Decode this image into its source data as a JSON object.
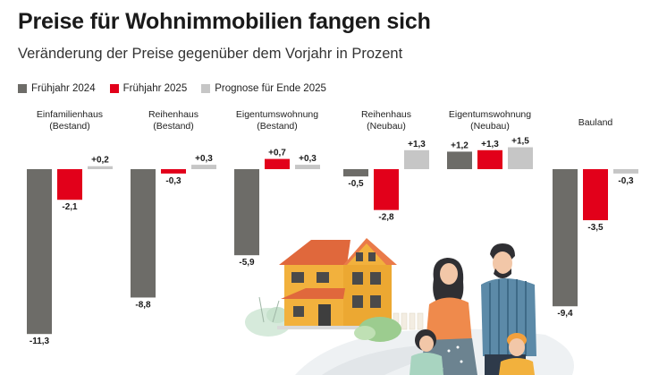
{
  "header": {
    "title": "Preise für Wohnimmobilien fangen sich",
    "subtitle": "Veränderung der Preise gegenüber dem Vorjahr in Prozent"
  },
  "chart_data": {
    "type": "bar",
    "title": "Preise für Wohnimmobilien fangen sich",
    "subtitle": "Veränderung der Preise gegenüber dem Vorjahr in Prozent",
    "categories": [
      [
        "Einfamilienhaus",
        "(Bestand)"
      ],
      [
        "Reihenhaus",
        "(Bestand)"
      ],
      [
        "Eigentumswohnung",
        "(Bestand)"
      ],
      [
        "Reihenhaus",
        "(Neubau)"
      ],
      [
        "Eigentumswohnung",
        "(Neubau)"
      ],
      [
        "Bauland"
      ]
    ],
    "series": [
      {
        "name": "Frühjahr 2024",
        "color": "#6d6c68",
        "values": [
          -11.3,
          -8.8,
          -5.9,
          -0.5,
          1.2,
          -9.4
        ],
        "labels": [
          "-11,3",
          "-8,8",
          "-5,9",
          "-0,5",
          "+1,2",
          "-9,4"
        ]
      },
      {
        "name": "Frühjahr 2025",
        "color": "#e2001a",
        "values": [
          -2.1,
          -0.3,
          0.7,
          -2.8,
          1.3,
          -3.5
        ],
        "labels": [
          "-2,1",
          "-0,3",
          "+0,7",
          "-2,8",
          "+1,3",
          "-3,5"
        ]
      },
      {
        "name": "Prognose für Ende 2025",
        "color": "#c6c6c6",
        "values": [
          0.2,
          0.3,
          0.3,
          1.3,
          1.5,
          -0.3
        ],
        "labels": [
          "+0,2",
          "+0,3",
          "+0,3",
          "+1,3",
          "+1,5",
          "-0,3"
        ]
      }
    ],
    "ylim": [
      -11.3,
      1.5
    ],
    "xlabel": "",
    "ylabel": "",
    "grid": false,
    "legend": "top-left"
  }
}
